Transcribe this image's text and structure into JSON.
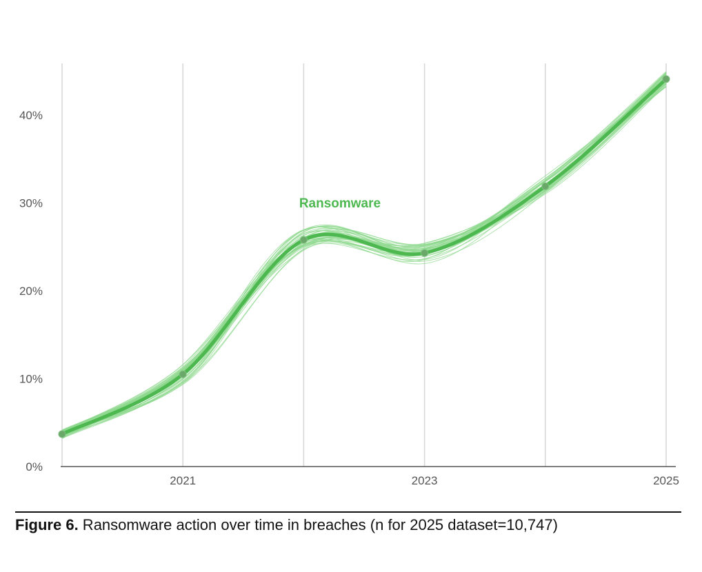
{
  "chart_data": {
    "type": "line",
    "x": [
      2020,
      2021,
      2022,
      2023,
      2024,
      2025
    ],
    "x_tick_labels": [
      "2021",
      "2023",
      "2025"
    ],
    "x_tick_values": [
      2021,
      2023,
      2025
    ],
    "y_tick_labels": [
      "0%",
      "10%",
      "20%",
      "30%",
      "40%"
    ],
    "y_tick_values": [
      0,
      10,
      20,
      30,
      40
    ],
    "ylim": [
      0,
      46
    ],
    "xlim": [
      2020,
      2025
    ],
    "grid": "vertical",
    "series": [
      {
        "name": "Ransomware",
        "values": [
          3.7,
          10.5,
          25.8,
          24.3,
          31.9,
          44.1
        ]
      }
    ],
    "series_label_position": "above-center",
    "uncertainty_band": "many thin bootstrap lines around the main line",
    "colors": {
      "series": "#4cb84f",
      "band": "#8fd88f",
      "point": "#6aa86a",
      "grid": "#d6d6d6",
      "axis": "#333333"
    }
  },
  "caption": {
    "figure_label": "Figure 6.",
    "text": " Ransomware action over time in breaches (n for 2025 dataset=10,747)"
  }
}
